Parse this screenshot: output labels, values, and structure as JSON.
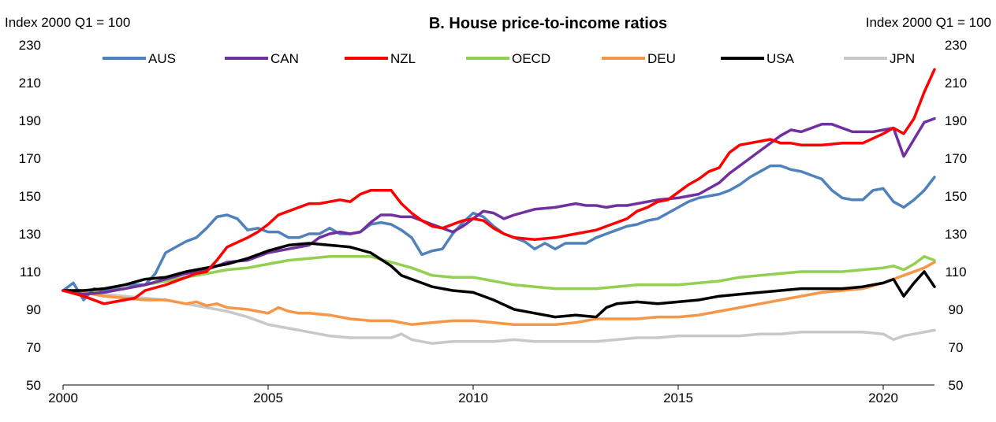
{
  "chart_data": {
    "type": "line",
    "title": "B. House price-to-income ratios",
    "ylabel_left": "Index 2000 Q1 = 100",
    "ylabel_right": "Index 2000 Q1 = 100",
    "xlabel": "",
    "ylim": [
      50,
      230
    ],
    "yticks": [
      50,
      70,
      90,
      110,
      130,
      150,
      170,
      190,
      210,
      230
    ],
    "xlim": [
      2000,
      2021.25
    ],
    "xticks": [
      2000,
      2005,
      2010,
      2015,
      2020
    ],
    "grid": false,
    "legend_position": "top",
    "series": [
      {
        "name": "AUS",
        "color": "#4f81bd",
        "x": [
          2000,
          2000.25,
          2000.5,
          2000.75,
          2001,
          2001.5,
          2002,
          2002.25,
          2002.5,
          2003,
          2003.25,
          2003.5,
          2003.75,
          2004,
          2004.25,
          2004.5,
          2004.75,
          2005,
          2005.25,
          2005.5,
          2005.75,
          2006,
          2006.25,
          2006.5,
          2006.75,
          2007,
          2007.25,
          2007.5,
          2007.75,
          2008,
          2008.25,
          2008.5,
          2008.75,
          2009,
          2009.25,
          2009.5,
          2009.75,
          2010,
          2010.25,
          2010.5,
          2010.75,
          2011,
          2011.25,
          2011.5,
          2011.75,
          2012,
          2012.25,
          2012.5,
          2012.75,
          2013,
          2013.25,
          2013.5,
          2013.75,
          2014,
          2014.25,
          2014.5,
          2014.75,
          2015,
          2015.25,
          2015.5,
          2015.75,
          2016,
          2016.25,
          2016.5,
          2016.75,
          2017,
          2017.25,
          2017.5,
          2017.75,
          2018,
          2018.25,
          2018.5,
          2018.75,
          2019,
          2019.25,
          2019.5,
          2019.75,
          2020,
          2020.25,
          2020.5,
          2020.75,
          2021,
          2021.25
        ],
        "values": [
          100,
          104,
          95,
          101,
          100,
          103,
          103,
          109,
          120,
          126,
          128,
          133,
          139,
          140,
          138,
          132,
          133,
          131,
          131,
          128,
          128,
          130,
          130,
          133,
          130,
          130,
          131,
          135,
          136,
          135,
          132,
          128,
          119,
          121,
          122,
          130,
          136,
          141,
          139,
          134,
          130,
          128,
          126,
          122,
          125,
          122,
          125,
          125,
          125,
          128,
          130,
          132,
          134,
          135,
          137,
          138,
          141,
          144,
          147,
          149,
          150,
          151,
          153,
          156,
          160,
          163,
          166,
          166,
          164,
          163,
          161,
          159,
          153,
          149,
          148,
          148,
          153,
          154,
          147,
          144,
          148,
          153,
          160
        ]
      },
      {
        "name": "CAN",
        "color": "#7030a0",
        "x": [
          2000,
          2000.5,
          2001,
          2001.5,
          2002,
          2002.5,
          2003,
          2003.5,
          2004,
          2004.5,
          2005,
          2005.5,
          2006,
          2006.25,
          2006.5,
          2006.75,
          2007,
          2007.25,
          2007.5,
          2007.75,
          2008,
          2008.25,
          2008.5,
          2008.75,
          2009,
          2009.25,
          2009.5,
          2009.75,
          2010,
          2010.25,
          2010.5,
          2010.75,
          2011,
          2011.5,
          2012,
          2012.25,
          2012.5,
          2012.75,
          2013,
          2013.25,
          2013.5,
          2013.75,
          2014,
          2014.5,
          2015,
          2015.25,
          2015.5,
          2015.75,
          2016,
          2016.25,
          2016.5,
          2016.75,
          2017,
          2017.25,
          2017.5,
          2017.75,
          2018,
          2018.25,
          2018.5,
          2018.75,
          2019,
          2019.25,
          2019.5,
          2019.75,
          2020,
          2020.25,
          2020.5,
          2020.75,
          2021,
          2021.25
        ],
        "values": [
          100,
          98,
          99,
          101,
          103,
          106,
          109,
          111,
          115,
          116,
          120,
          122,
          124,
          128,
          130,
          131,
          130,
          131,
          136,
          140,
          140,
          139,
          139,
          137,
          135,
          133,
          131,
          134,
          138,
          142,
          141,
          138,
          140,
          143,
          144,
          145,
          146,
          145,
          145,
          144,
          145,
          145,
          146,
          148,
          149,
          150,
          151,
          154,
          157,
          162,
          166,
          170,
          174,
          178,
          182,
          185,
          184,
          186,
          188,
          188,
          186,
          184,
          184,
          184,
          185,
          186,
          171,
          180,
          189,
          191
        ]
      },
      {
        "name": "NZL",
        "color": "#ff0000",
        "x": [
          2000,
          2000.5,
          2001,
          2001.25,
          2001.5,
          2001.75,
          2002,
          2002.5,
          2003,
          2003.25,
          2003.5,
          2003.75,
          2004,
          2004.5,
          2004.75,
          2005,
          2005.25,
          2005.5,
          2005.75,
          2006,
          2006.25,
          2006.5,
          2006.75,
          2007,
          2007.25,
          2007.5,
          2007.75,
          2008,
          2008.25,
          2008.5,
          2008.75,
          2009,
          2009.25,
          2009.5,
          2009.75,
          2010,
          2010.25,
          2010.5,
          2010.75,
          2011,
          2011.5,
          2012,
          2012.5,
          2013,
          2013.25,
          2013.5,
          2013.75,
          2014,
          2014.25,
          2014.5,
          2014.75,
          2015,
          2015.25,
          2015.5,
          2015.75,
          2016,
          2016.25,
          2016.5,
          2016.75,
          2017,
          2017.25,
          2017.5,
          2017.75,
          2018,
          2018.5,
          2019,
          2019.5,
          2020,
          2020.25,
          2020.5,
          2020.75,
          2021,
          2021.25
        ],
        "values": [
          100,
          97,
          93,
          94,
          95,
          96,
          100,
          103,
          107,
          109,
          110,
          116,
          123,
          128,
          131,
          135,
          140,
          142,
          144,
          146,
          146,
          147,
          148,
          147,
          151,
          153,
          153,
          153,
          146,
          141,
          137,
          134,
          133,
          135,
          137,
          138,
          137,
          133,
          130,
          128,
          127,
          128,
          130,
          132,
          134,
          136,
          138,
          142,
          144,
          147,
          148,
          152,
          156,
          159,
          163,
          165,
          173,
          177,
          178,
          179,
          180,
          178,
          178,
          177,
          177,
          178,
          178,
          183,
          186,
          183,
          191,
          205,
          217
        ]
      },
      {
        "name": "OECD",
        "color": "#92d050",
        "x": [
          2000,
          2000.5,
          2001,
          2001.5,
          2002,
          2002.5,
          2003,
          2003.5,
          2004,
          2004.5,
          2005,
          2005.5,
          2006,
          2006.5,
          2007,
          2007.5,
          2008,
          2008.5,
          2009,
          2009.5,
          2010,
          2010.5,
          2011,
          2011.5,
          2012,
          2012.5,
          2013,
          2013.5,
          2014,
          2014.5,
          2015,
          2015.5,
          2016,
          2016.5,
          2017,
          2017.5,
          2018,
          2018.5,
          2019,
          2019.5,
          2020,
          2020.25,
          2020.5,
          2020.75,
          2021,
          2021.25
        ],
        "values": [
          100,
          100,
          100,
          101,
          103,
          105,
          107,
          109,
          111,
          112,
          114,
          116,
          117,
          118,
          118,
          118,
          115,
          112,
          108,
          107,
          107,
          105,
          103,
          102,
          101,
          101,
          101,
          102,
          103,
          103,
          103,
          104,
          105,
          107,
          108,
          109,
          110,
          110,
          110,
          111,
          112,
          113,
          111,
          114,
          118,
          116
        ]
      },
      {
        "name": "DEU",
        "color": "#f79646",
        "x": [
          2000,
          2000.5,
          2001,
          2001.5,
          2002,
          2002.5,
          2003,
          2003.25,
          2003.5,
          2003.75,
          2004,
          2004.5,
          2005,
          2005.25,
          2005.5,
          2005.75,
          2006,
          2006.5,
          2007,
          2007.5,
          2008,
          2008.5,
          2009,
          2009.5,
          2010,
          2010.5,
          2011,
          2011.5,
          2012,
          2012.5,
          2013,
          2013.5,
          2014,
          2014.5,
          2015,
          2015.5,
          2016,
          2016.5,
          2017,
          2017.5,
          2018,
          2018.5,
          2019,
          2019.5,
          2020,
          2020.5,
          2021,
          2021.25
        ],
        "values": [
          100,
          99,
          97,
          96,
          95,
          95,
          93,
          94,
          92,
          93,
          91,
          90,
          88,
          91,
          89,
          88,
          88,
          87,
          85,
          84,
          84,
          82,
          83,
          84,
          84,
          83,
          82,
          82,
          82,
          83,
          85,
          85,
          85,
          86,
          86,
          87,
          89,
          91,
          93,
          95,
          97,
          99,
          100,
          101,
          104,
          108,
          112,
          115
        ]
      },
      {
        "name": "USA",
        "color": "#000000",
        "x": [
          2000,
          2000.5,
          2001,
          2001.5,
          2002,
          2002.5,
          2003,
          2003.5,
          2004,
          2004.5,
          2005,
          2005.5,
          2006,
          2006.5,
          2007,
          2007.5,
          2008,
          2008.25,
          2008.5,
          2008.75,
          2009,
          2009.5,
          2010,
          2010.5,
          2011,
          2011.5,
          2012,
          2012.5,
          2013,
          2013.25,
          2013.5,
          2014,
          2014.5,
          2015,
          2015.5,
          2016,
          2016.5,
          2017,
          2017.5,
          2018,
          2018.5,
          2019,
          2019.5,
          2020,
          2020.25,
          2020.5,
          2020.75,
          2021,
          2021.25
        ],
        "values": [
          100,
          100,
          101,
          103,
          106,
          107,
          110,
          112,
          114,
          117,
          121,
          124,
          125,
          124,
          123,
          120,
          113,
          108,
          106,
          104,
          102,
          100,
          99,
          95,
          90,
          88,
          86,
          87,
          86,
          91,
          93,
          94,
          93,
          94,
          95,
          97,
          98,
          99,
          100,
          101,
          101,
          101,
          102,
          104,
          106,
          97,
          104,
          110,
          102
        ]
      },
      {
        "name": "JPN",
        "color": "#c8c8c8",
        "x": [
          2000,
          2000.5,
          2001,
          2001.5,
          2002,
          2002.5,
          2003,
          2003.5,
          2004,
          2004.5,
          2005,
          2005.5,
          2006,
          2006.5,
          2007,
          2007.5,
          2008,
          2008.25,
          2008.5,
          2008.75,
          2009,
          2009.5,
          2010,
          2010.5,
          2011,
          2011.5,
          2012,
          2012.5,
          2013,
          2013.5,
          2014,
          2014.5,
          2015,
          2015.5,
          2016,
          2016.5,
          2017,
          2017.5,
          2018,
          2018.5,
          2019,
          2019.5,
          2020,
          2020.25,
          2020.5,
          2020.75,
          2021,
          2021.25
        ],
        "values": [
          100,
          99,
          98,
          97,
          96,
          95,
          93,
          91,
          89,
          86,
          82,
          80,
          78,
          76,
          75,
          75,
          75,
          77,
          74,
          73,
          72,
          73,
          73,
          73,
          74,
          73,
          73,
          73,
          73,
          74,
          75,
          75,
          76,
          76,
          76,
          76,
          77,
          77,
          78,
          78,
          78,
          78,
          77,
          74,
          76,
          77,
          78,
          79
        ]
      }
    ]
  }
}
